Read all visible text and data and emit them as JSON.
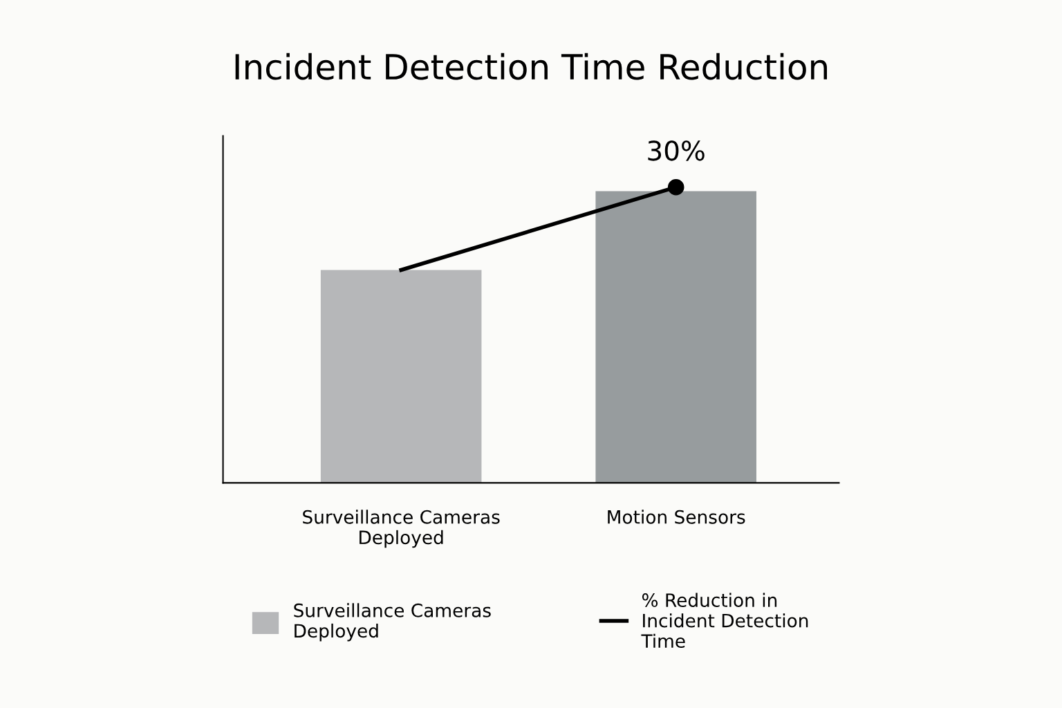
{
  "chart_data": {
    "type": "bar",
    "title": "Incident Detection Time Reduction",
    "categories": [
      "Surveillance Cameras Deployed",
      "Motion Sensors"
    ],
    "series": [
      {
        "name": "Surveillance Cameras Deployed",
        "colors": [
          "#b6b7b9",
          "#979c9e"
        ],
        "color": "#b6b7b9",
        "values": [
          21.6,
          29.6
        ]
      },
      {
        "name": "% Reduction in Incident Detection Time",
        "type": "line",
        "color": "#000000",
        "values": [
          21.6,
          30
        ],
        "value_labels": [
          null,
          "30%"
        ]
      }
    ],
    "ylim": [
      0,
      35.2
    ],
    "marker": "circle",
    "line_style": "solid",
    "grid": false,
    "legend": "bottom"
  }
}
